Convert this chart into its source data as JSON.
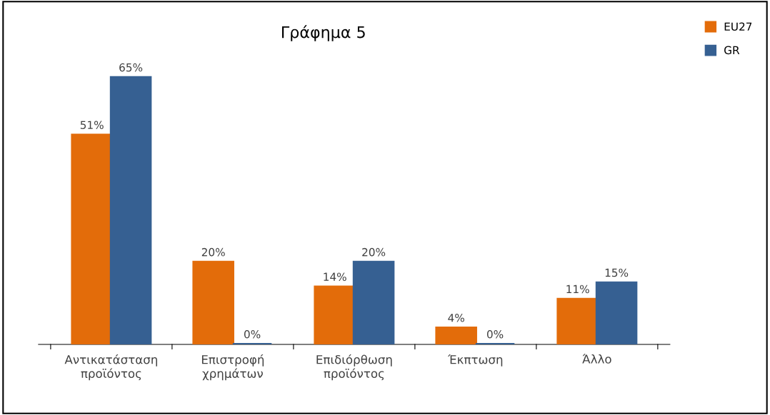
{
  "chart_data": {
    "type": "bar",
    "title": "Γράφημα 5",
    "categories": [
      "Αντικατάσταση\nπροϊόντος",
      "Επιστροφή\nχρημάτων",
      "Επιδιόρθωση\nπροϊόντος",
      "Έκπτωση",
      "Άλλο"
    ],
    "series": [
      {
        "name": "EU27",
        "color": "#e36c0a",
        "values": [
          51,
          20,
          14,
          4,
          11
        ],
        "value_labels": [
          "51%",
          "20%",
          "14%",
          "4%",
          "11%"
        ]
      },
      {
        "name": "GR",
        "color": "#366092",
        "values": [
          65,
          0,
          20,
          0,
          15
        ],
        "value_labels": [
          "65%",
          "0%",
          "20%",
          "0%",
          "15%"
        ]
      }
    ],
    "legend": "top right",
    "grid": false
  }
}
